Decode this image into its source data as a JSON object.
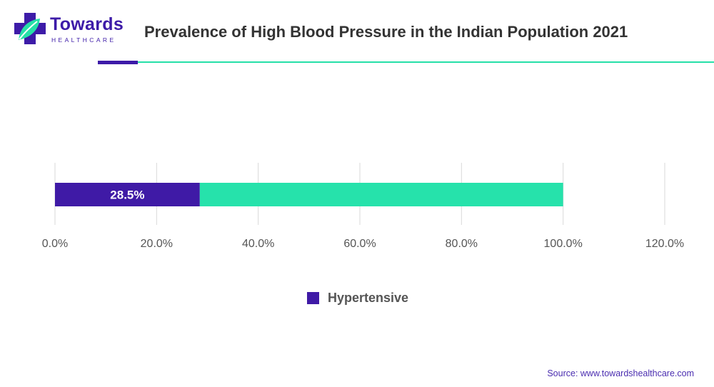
{
  "header": {
    "logo_text": "Towards",
    "logo_subtext": "HEALTHCARE",
    "title": "Prevalence of High Blood Pressure in the Indian Population 2021"
  },
  "colors": {
    "brand_purple": "#3d1ba8",
    "accent_green": "#26e0a8",
    "bar_primary": "#3f1aa6",
    "bar_remainder": "#26e2ab",
    "grid": "#d9d9d9",
    "tick_text": "#555555"
  },
  "chart_data": {
    "type": "bar",
    "orientation": "horizontal",
    "stacked": true,
    "categories": [
      ""
    ],
    "series": [
      {
        "name": "Hypertensive",
        "values": [
          28.5
        ],
        "label": "28.5%"
      },
      {
        "values": [
          71.5
        ]
      }
    ],
    "xlim": [
      0,
      120
    ],
    "xticks": [
      "0.0%",
      "20.0%",
      "40.0%",
      "60.0%",
      "80.0%",
      "100.0%",
      "120.0%"
    ],
    "grid": "vertical",
    "legend_position": "bottom"
  },
  "legend": {
    "label": "Hypertensive"
  },
  "footer": {
    "source": "Source: www.towardshealthcare.com"
  }
}
